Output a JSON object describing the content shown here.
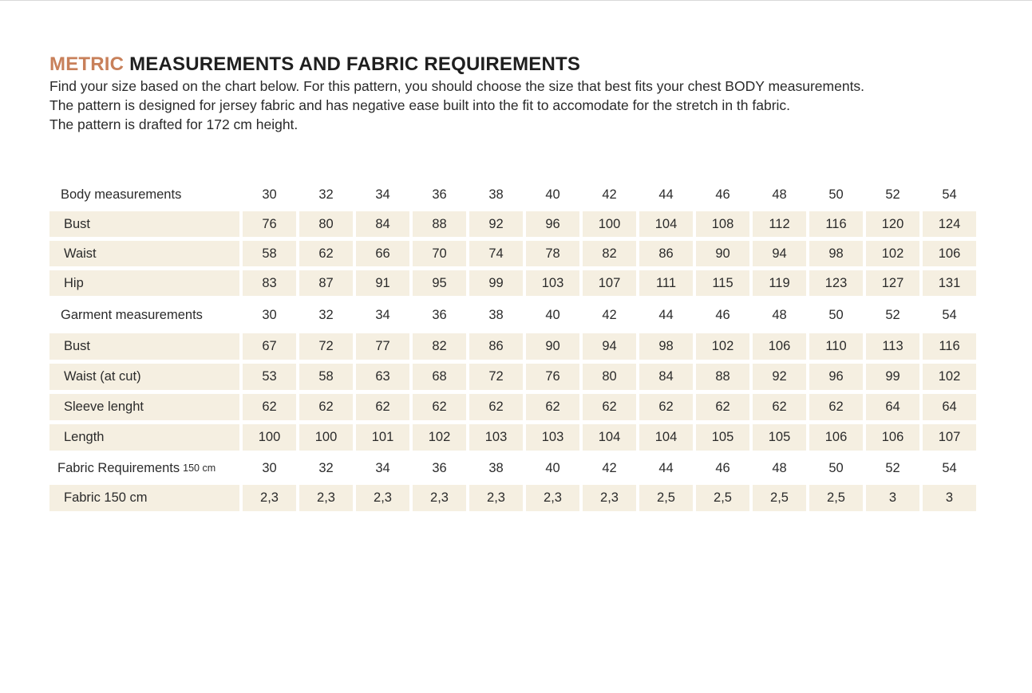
{
  "title": {
    "accent": "METRIC",
    "rest": "MEASUREMENTS AND FABRIC REQUIREMENTS"
  },
  "description": [
    "Find your size based on the chart below. For this pattern, you should choose the size that best fits your chest BODY measurements.",
    "The pattern is designed for jersey fabric and has negative ease built into the fit to accomodate for the stretch in th fabric.",
    "The pattern is drafted for 172 cm height."
  ],
  "colors": {
    "accent": "#c8805a",
    "row_fill": "#f5efe1",
    "text": "#1f1f1f"
  },
  "table": {
    "body_header": {
      "label": "Body measurements",
      "sizes": [
        "30",
        "32",
        "34",
        "36",
        "38",
        "40",
        "42",
        "44",
        "46",
        "48",
        "50",
        "52",
        "54"
      ]
    },
    "body_rows": [
      {
        "label": "Bust",
        "values": [
          "76",
          "80",
          "84",
          "88",
          "92",
          "96",
          "100",
          "104",
          "108",
          "112",
          "116",
          "120",
          "124"
        ]
      },
      {
        "label": "Waist",
        "values": [
          "58",
          "62",
          "66",
          "70",
          "74",
          "78",
          "82",
          "86",
          "90",
          "94",
          "98",
          "102",
          "106"
        ]
      },
      {
        "label": "Hip",
        "values": [
          "83",
          "87",
          "91",
          "95",
          "99",
          "103",
          "107",
          "111",
          "115",
          "119",
          "123",
          "127",
          "131"
        ]
      }
    ],
    "garment_header": {
      "label": "Garment measurements",
      "sizes": [
        "30",
        "32",
        "34",
        "36",
        "38",
        "40",
        "42",
        "44",
        "46",
        "48",
        "50",
        "52",
        "54"
      ]
    },
    "garment_rows": [
      {
        "label": "Bust",
        "values": [
          "67",
          "72",
          "77",
          "82",
          "86",
          "90",
          "94",
          "98",
          "102",
          "106",
          "110",
          "113",
          "116"
        ]
      },
      {
        "label": "Waist  (at cut)",
        "values": [
          "53",
          "58",
          "63",
          "68",
          "72",
          "76",
          "80",
          "84",
          "88",
          "92",
          "96",
          "99",
          "102"
        ]
      },
      {
        "label": "Sleeve lenght",
        "values": [
          "62",
          "62",
          "62",
          "62",
          "62",
          "62",
          "62",
          "62",
          "62",
          "62",
          "62",
          "64",
          "64"
        ]
      },
      {
        "label": "Length",
        "values": [
          "100",
          "100",
          "101",
          "102",
          "103",
          "103",
          "104",
          "104",
          "105",
          "105",
          "106",
          "106",
          "107"
        ]
      }
    ],
    "fabric_header": {
      "label": "Fabric Requirements",
      "label_small": "150 cm",
      "sizes": [
        "30",
        "32",
        "34",
        "36",
        "38",
        "40",
        "42",
        "44",
        "46",
        "48",
        "50",
        "52",
        "54"
      ]
    },
    "fabric_rows": [
      {
        "label": "Fabric 150 cm",
        "values": [
          "2,3",
          "2,3",
          "2,3",
          "2,3",
          "2,3",
          "2,3",
          "2,3",
          "2,5",
          "2,5",
          "2,5",
          "2,5",
          "3",
          "3"
        ]
      }
    ]
  }
}
